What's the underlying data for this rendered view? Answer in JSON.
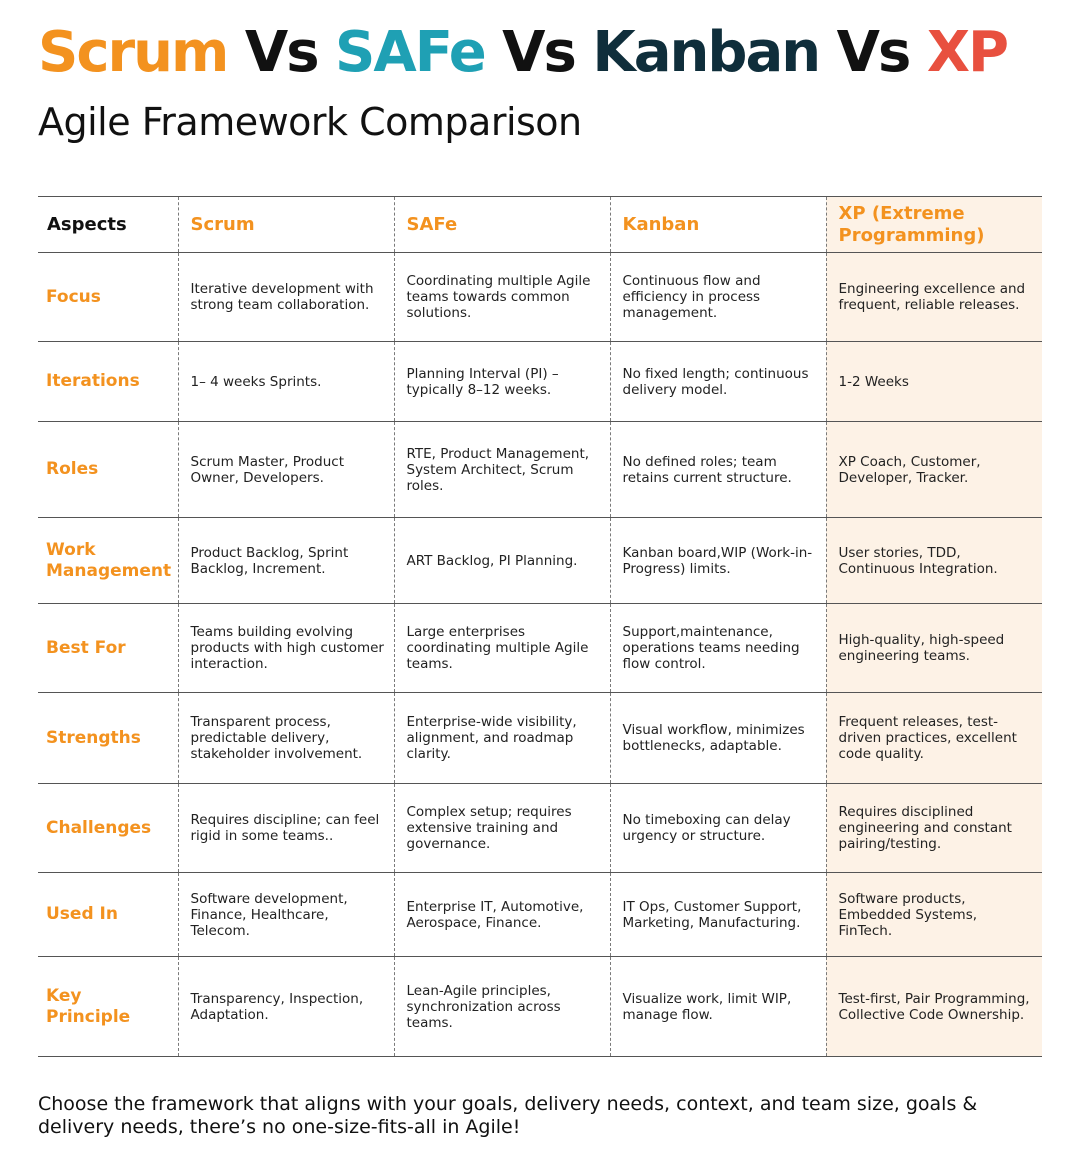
{
  "title": {
    "scrum": "Scrum",
    "vs1": " Vs ",
    "safe": "SAFe",
    "vs2": " Vs ",
    "kanban": "Kanban",
    "vs3": " Vs ",
    "xp": "XP"
  },
  "subtitle": "Agile Framework Comparison",
  "colors": {
    "scrum": "#f3921f",
    "safe": "#1fa0b4",
    "kanban": "#0f2e3b",
    "xp": "#e8503f",
    "row_heading": "#f3921f",
    "xp_column_bg": "#fdf2e6"
  },
  "table": {
    "headers": [
      "Aspects",
      "Scrum",
      "SAFe",
      "Kanban",
      "XP (Extreme Programming)"
    ],
    "rows": [
      {
        "aspect": "Focus",
        "scrum": "Iterative development with strong team collaboration.",
        "safe": "Coordinating multiple Agile teams towards common solutions.",
        "kanban": "Continuous flow and efficiency in process management.",
        "xp": "Engineering excellence and frequent, reliable releases."
      },
      {
        "aspect": "Iterations",
        "scrum": "1– 4 weeks Sprints.",
        "safe": "Planning Interval (PI) – typically 8–12 weeks.",
        "kanban": "No fixed length; continuous delivery model.",
        "xp": "1-2 Weeks"
      },
      {
        "aspect": "Roles",
        "scrum": "Scrum Master, Product Owner, Developers.",
        "safe": "RTE, Product Management, System Architect, Scrum roles.",
        "kanban": "No defined roles; team retains current structure.",
        "xp": "XP Coach, Customer, Developer, Tracker."
      },
      {
        "aspect": "Work Management",
        "scrum": "Product Backlog, Sprint Backlog, Increment.",
        "safe": "ART Backlog, PI Planning.",
        "kanban": "Kanban board,WIP (Work-in-Progress) limits.",
        "xp": "User stories, TDD, Continuous Integration."
      },
      {
        "aspect": "Best For",
        "scrum": "Teams building evolving products with high customer interaction.",
        "safe": "Large enterprises coordinating multiple Agile teams.",
        "kanban": "Support,maintenance, operations teams needing flow control.",
        "xp": "High-quality, high-speed engineering teams."
      },
      {
        "aspect": "Strengths",
        "scrum": "Transparent process, predictable delivery, stakeholder involvement.",
        "safe": "Enterprise-wide visibility, alignment, and roadmap clarity.",
        "kanban": "Visual workflow, minimizes bottlenecks, adaptable.",
        "xp": "Frequent releases, test-driven practices, excellent code quality."
      },
      {
        "aspect": "Challenges",
        "scrum": "Requires discipline; can feel rigid in some teams..",
        "safe": "Complex setup; requires extensive training and governance.",
        "kanban": "No timeboxing can delay urgency or structure.",
        "xp": "Requires disciplined engineering and constant pairing/testing."
      },
      {
        "aspect": "Used In",
        "scrum": "Software development, Finance, Healthcare, Telecom.",
        "safe": "Enterprise IT, Automotive, Aerospace, Finance.",
        "kanban": "IT Ops, Customer Support, Marketing, Manufacturing.",
        "xp": "Software products, Embedded Systems, FinTech."
      },
      {
        "aspect": "Key Principle",
        "scrum": "Transparency, Inspection, Adaptation.",
        "safe": "Lean-Agile principles, synchronization across teams.",
        "kanban": "Visualize work, limit WIP, manage flow.",
        "xp": "Test-first, Pair Programming, Collective Code Ownership."
      }
    ]
  },
  "footer": "Choose the framework that aligns with your goals, delivery needs, context, and team size, goals & delivery needs, there’s no one-size-fits-all in Agile!"
}
